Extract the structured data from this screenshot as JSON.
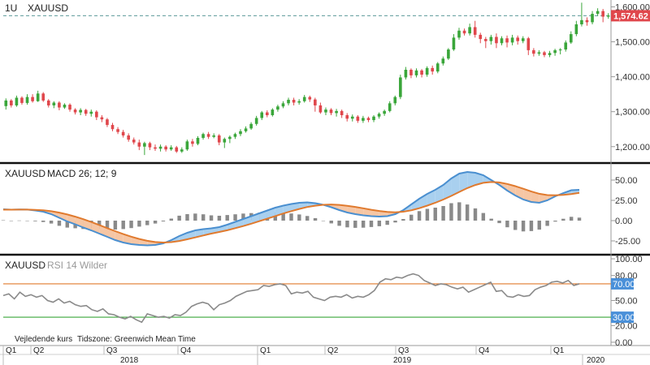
{
  "chart_data": {
    "type": "financial-multi-panel",
    "price_panel": {
      "interval": "1U",
      "symbol": "XAUUSD",
      "type": "candlestick",
      "y_ticks": [
        "1,200.00",
        "1,300.00",
        "1,400.00",
        "1,500.00",
        "1,600.00"
      ],
      "ylim": [
        1160,
        1615
      ],
      "last_price_label": "1,574.62",
      "last_price": 1574.62,
      "colors": {
        "up": "#3aa63a",
        "down": "#e0474c",
        "last_price_tag": "#e0474c"
      },
      "candles": [
        [
          1316,
          1332,
          1306,
          1338
        ],
        [
          1332,
          1318,
          1312,
          1336
        ],
        [
          1318,
          1340,
          1314,
          1346
        ],
        [
          1340,
          1325,
          1320,
          1344
        ],
        [
          1325,
          1342,
          1320,
          1350
        ],
        [
          1342,
          1330,
          1326,
          1350
        ],
        [
          1330,
          1352,
          1328,
          1360
        ],
        [
          1352,
          1332,
          1328,
          1356
        ],
        [
          1332,
          1318,
          1312,
          1336
        ],
        [
          1318,
          1326,
          1310,
          1330
        ],
        [
          1326,
          1312,
          1304,
          1330
        ],
        [
          1312,
          1320,
          1308,
          1324
        ],
        [
          1320,
          1306,
          1300,
          1324
        ],
        [
          1306,
          1298,
          1292,
          1310
        ],
        [
          1298,
          1305,
          1290,
          1310
        ],
        [
          1305,
          1294,
          1288,
          1308
        ],
        [
          1294,
          1300,
          1286,
          1306
        ],
        [
          1300,
          1284,
          1276,
          1304
        ],
        [
          1284,
          1278,
          1270,
          1290
        ],
        [
          1278,
          1262,
          1256,
          1282
        ],
        [
          1262,
          1250,
          1244,
          1268
        ],
        [
          1250,
          1242,
          1236,
          1256
        ],
        [
          1242,
          1232,
          1226,
          1248
        ],
        [
          1232,
          1220,
          1214,
          1238
        ],
        [
          1220,
          1212,
          1206,
          1226
        ],
        [
          1212,
          1200,
          1190,
          1220
        ],
        [
          1200,
          1210,
          1176,
          1214
        ],
        [
          1210,
          1198,
          1190,
          1214
        ],
        [
          1198,
          1194,
          1188,
          1206
        ],
        [
          1194,
          1200,
          1186,
          1206
        ],
        [
          1200,
          1192,
          1186,
          1204
        ],
        [
          1192,
          1198,
          1188,
          1204
        ],
        [
          1198,
          1186,
          1182,
          1202
        ],
        [
          1186,
          1192,
          1182,
          1198
        ],
        [
          1192,
          1215,
          1188,
          1220
        ],
        [
          1215,
          1208,
          1200,
          1222
        ],
        [
          1208,
          1225,
          1204,
          1230
        ],
        [
          1225,
          1236,
          1220,
          1240
        ],
        [
          1236,
          1228,
          1222,
          1242
        ],
        [
          1228,
          1232,
          1224,
          1238
        ],
        [
          1232,
          1212,
          1204,
          1236
        ],
        [
          1212,
          1222,
          1196,
          1226
        ],
        [
          1222,
          1228,
          1210,
          1232
        ],
        [
          1228,
          1236,
          1222,
          1240
        ],
        [
          1236,
          1244,
          1230,
          1250
        ],
        [
          1244,
          1252,
          1240,
          1258
        ],
        [
          1252,
          1265,
          1248,
          1270
        ],
        [
          1265,
          1282,
          1260,
          1288
        ],
        [
          1282,
          1298,
          1276,
          1302
        ],
        [
          1298,
          1290,
          1284,
          1304
        ],
        [
          1290,
          1306,
          1286,
          1310
        ],
        [
          1306,
          1315,
          1300,
          1320
        ],
        [
          1315,
          1324,
          1310,
          1330
        ],
        [
          1324,
          1334,
          1318,
          1340
        ],
        [
          1334,
          1326,
          1318,
          1340
        ],
        [
          1326,
          1330,
          1320,
          1336
        ],
        [
          1330,
          1342,
          1326,
          1348
        ],
        [
          1342,
          1335,
          1328,
          1346
        ],
        [
          1335,
          1318,
          1300,
          1340
        ],
        [
          1318,
          1298,
          1294,
          1326
        ],
        [
          1298,
          1306,
          1290,
          1312
        ],
        [
          1306,
          1296,
          1290,
          1310
        ],
        [
          1296,
          1302,
          1286,
          1308
        ],
        [
          1302,
          1290,
          1282,
          1306
        ],
        [
          1290,
          1280,
          1272,
          1296
        ],
        [
          1280,
          1286,
          1272,
          1292
        ],
        [
          1286,
          1274,
          1268,
          1290
        ],
        [
          1274,
          1282,
          1268,
          1288
        ],
        [
          1282,
          1276,
          1270,
          1286
        ],
        [
          1276,
          1286,
          1270,
          1290
        ],
        [
          1286,
          1294,
          1280,
          1298
        ],
        [
          1294,
          1302,
          1288,
          1306
        ],
        [
          1302,
          1324,
          1298,
          1330
        ],
        [
          1324,
          1342,
          1318,
          1346
        ],
        [
          1342,
          1398,
          1336,
          1406
        ],
        [
          1398,
          1420,
          1392,
          1428
        ],
        [
          1420,
          1404,
          1396,
          1424
        ],
        [
          1404,
          1418,
          1398,
          1424
        ],
        [
          1418,
          1406,
          1398,
          1422
        ],
        [
          1406,
          1425,
          1400,
          1430
        ],
        [
          1425,
          1415,
          1406,
          1432
        ],
        [
          1415,
          1438,
          1410,
          1442
        ],
        [
          1438,
          1452,
          1432,
          1458
        ],
        [
          1452,
          1478,
          1448,
          1482
        ],
        [
          1478,
          1512,
          1474,
          1522
        ],
        [
          1512,
          1532,
          1506,
          1540
        ],
        [
          1532,
          1524,
          1518,
          1538
        ],
        [
          1524,
          1542,
          1518,
          1552
        ],
        [
          1542,
          1520,
          1512,
          1560
        ],
        [
          1520,
          1508,
          1496,
          1526
        ],
        [
          1508,
          1502,
          1482,
          1514
        ],
        [
          1502,
          1514,
          1492,
          1520
        ],
        [
          1514,
          1496,
          1482,
          1524
        ],
        [
          1496,
          1510,
          1490,
          1516
        ],
        [
          1510,
          1498,
          1484,
          1518
        ],
        [
          1498,
          1512,
          1490,
          1520
        ],
        [
          1512,
          1502,
          1492,
          1518
        ],
        [
          1502,
          1510,
          1496,
          1516
        ],
        [
          1510,
          1476,
          1462,
          1514
        ],
        [
          1476,
          1466,
          1458,
          1482
        ],
        [
          1466,
          1470,
          1460,
          1476
        ],
        [
          1470,
          1462,
          1456,
          1474
        ],
        [
          1462,
          1468,
          1456,
          1474
        ],
        [
          1468,
          1476,
          1460,
          1480
        ],
        [
          1476,
          1478,
          1464,
          1482
        ],
        [
          1478,
          1498,
          1472,
          1504
        ],
        [
          1498,
          1522,
          1494,
          1530
        ],
        [
          1522,
          1550,
          1516,
          1560
        ],
        [
          1550,
          1562,
          1544,
          1612
        ],
        [
          1562,
          1556,
          1546,
          1570
        ],
        [
          1556,
          1580,
          1550,
          1588
        ],
        [
          1580,
          1588,
          1574,
          1596
        ],
        [
          1588,
          1572,
          1556,
          1594
        ],
        [
          1572,
          1575,
          1566,
          1582
        ]
      ]
    },
    "macd_panel": {
      "symbol": "XAUUSD",
      "indicator": "MACD 26; 12; 9",
      "y_ticks": [
        "50.00",
        "25.00",
        "0.00",
        "-25.00"
      ],
      "ylim": [
        -40,
        68
      ],
      "colors": {
        "macd": "#4a8fd0",
        "signal": "#e07a2e",
        "hist": "#8a8a8a",
        "fill_up": "#a9d0ef",
        "fill_down": "#f6c6a4"
      },
      "macd": [
        14.0,
        13.5,
        13.8,
        13.6,
        12.5,
        11.0,
        8.0,
        3.5,
        -1.0,
        -4.5,
        -8.5,
        -12.0,
        -16.0,
        -20.0,
        -24.0,
        -27.0,
        -29.0,
        -30.0,
        -30.5,
        -30.0,
        -28.0,
        -24.0,
        -19.0,
        -15.0,
        -12.0,
        -10.5,
        -9.5,
        -8.0,
        -5.0,
        -1.5,
        2.0,
        5.5,
        9.0,
        12.5,
        16.0,
        18.5,
        20.5,
        22.0,
        22.5,
        21.5,
        19.5,
        16.5,
        13.0,
        10.0,
        8.0,
        6.5,
        5.5,
        5.0,
        5.5,
        8.0,
        13.0,
        20.0,
        27.0,
        33.0,
        38.0,
        44.0,
        52.0,
        58.0,
        60.0,
        59.0,
        56.0,
        50.0,
        44.0,
        37.0,
        31.0,
        26.0,
        23.0,
        22.0,
        25.0,
        30.0,
        34.0,
        37.5,
        38.0
      ],
      "signal": [
        13.5,
        13.5,
        13.6,
        13.6,
        13.3,
        12.7,
        11.6,
        9.9,
        7.6,
        4.9,
        1.8,
        -1.7,
        -5.4,
        -9.3,
        -13.0,
        -16.6,
        -19.8,
        -22.6,
        -24.9,
        -26.4,
        -27.0,
        -26.5,
        -25.1,
        -23.0,
        -20.7,
        -18.3,
        -16.0,
        -14.0,
        -11.9,
        -9.3,
        -6.7,
        -3.8,
        -0.7,
        2.4,
        5.6,
        8.8,
        11.7,
        14.4,
        16.8,
        18.4,
        19.5,
        19.9,
        19.4,
        18.3,
        16.9,
        15.2,
        13.4,
        11.9,
        10.7,
        10.3,
        11.0,
        12.7,
        15.3,
        18.5,
        22.0,
        26.0,
        30.5,
        35.4,
        40.1,
        43.9,
        46.6,
        47.6,
        47.1,
        45.2,
        42.5,
        39.3,
        35.9,
        33.1,
        31.5,
        31.2,
        31.7,
        32.8,
        34.3
      ],
      "histogram": [
        0.5,
        0.0,
        0.2,
        0.0,
        -0.8,
        -1.7,
        -3.6,
        -6.4,
        -8.6,
        -9.4,
        -10.3,
        -10.3,
        -10.6,
        -10.7,
        -11.0,
        -10.4,
        -9.2,
        -7.4,
        -5.6,
        -3.6,
        -1.0,
        2.5,
        6.1,
        8.0,
        8.7,
        7.8,
        6.5,
        6.0,
        6.9,
        7.8,
        8.7,
        9.3,
        9.7,
        10.1,
        10.4,
        9.7,
        8.8,
        7.6,
        5.7,
        3.1,
        0.0,
        -3.4,
        -6.4,
        -8.3,
        -8.9,
        -8.7,
        -7.9,
        -6.9,
        -5.2,
        -2.3,
        2.0,
        7.3,
        11.7,
        14.5,
        16.0,
        18.0,
        21.5,
        22.6,
        19.9,
        15.1,
        9.4,
        2.4,
        -3.1,
        -8.2,
        -11.5,
        -13.3,
        -12.9,
        -11.1,
        -6.5,
        -1.2,
        2.3,
        4.7,
        3.7
      ]
    },
    "rsi_panel": {
      "symbol": "XAUUSD",
      "indicator": "RSI 14 Wilder",
      "y_ticks": [
        "100.00",
        "80.00",
        "50.00",
        "20.00",
        "0.00"
      ],
      "ylim": [
        -2,
        103
      ],
      "upper_level": 70,
      "lower_level": 30,
      "upper_label": "70.00",
      "lower_label": "30.00",
      "colors": {
        "line": "#8a8a8a",
        "upper": "#e07a2e",
        "lower": "#3aa63a",
        "tag": "#4a90d9"
      },
      "values": [
        56,
        58,
        52,
        60,
        55,
        57,
        54,
        56,
        50,
        48,
        52,
        47,
        49,
        45,
        43,
        44,
        39,
        37,
        40,
        34,
        33,
        30,
        28,
        31,
        27,
        24,
        34,
        32,
        30,
        31,
        29,
        33,
        32,
        36,
        43,
        46,
        48,
        46,
        39,
        45,
        47,
        50,
        55,
        58,
        61,
        62,
        63,
        68,
        67,
        69,
        70,
        68,
        58,
        60,
        59,
        61,
        54,
        52,
        50,
        54,
        55,
        54,
        57,
        53,
        55,
        54,
        57,
        62,
        72,
        76,
        75,
        78,
        77,
        80,
        82,
        80,
        74,
        71,
        68,
        70,
        69,
        66,
        64,
        66,
        60,
        63,
        66,
        69,
        72,
        61,
        62,
        55,
        54,
        57,
        55,
        56,
        63,
        66,
        68,
        72,
        73,
        71,
        74,
        68,
        70
      ]
    },
    "footer": {
      "note": "Vejledende kurs",
      "timezone": "Tidszone: Greenwich Mean Time",
      "quarter_labels": [
        "Q1",
        "Q2",
        "Q3",
        "Q4",
        "Q1",
        "Q2",
        "Q3",
        "Q4",
        "Q1"
      ],
      "year_labels": [
        "2018",
        "2019",
        "2020"
      ]
    }
  }
}
